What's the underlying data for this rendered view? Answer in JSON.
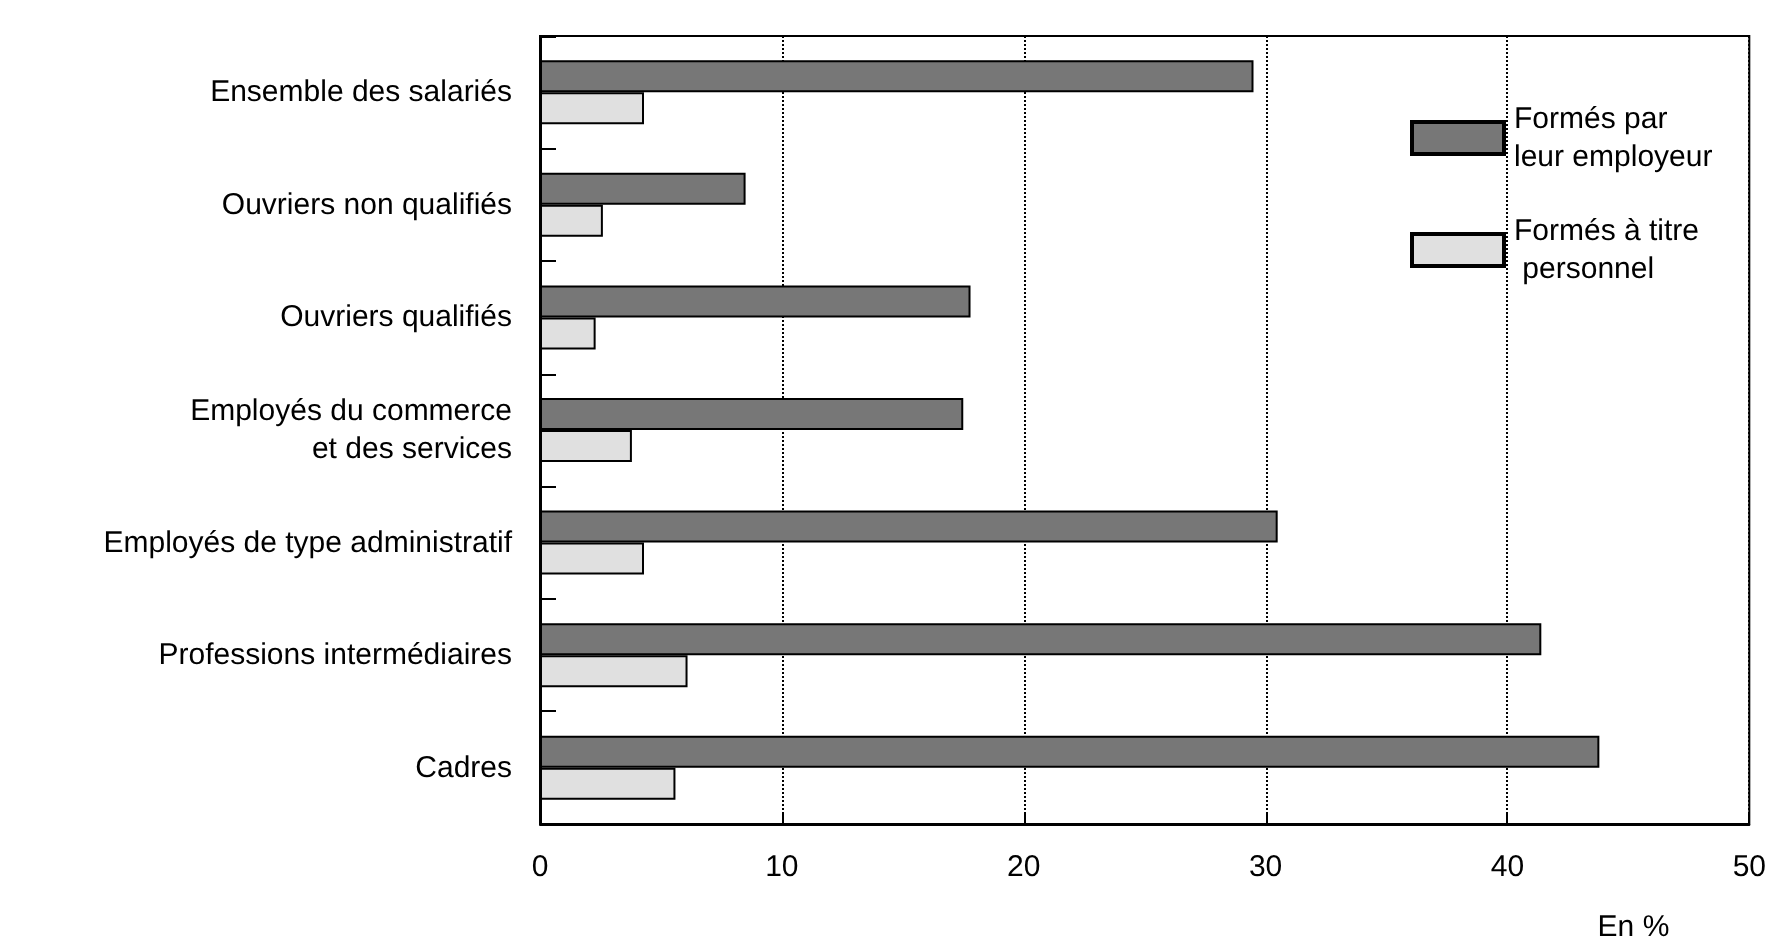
{
  "chart_data": {
    "type": "bar",
    "orientation": "horizontal",
    "xlabel": "En %",
    "categories": [
      "Ensemble des salariés",
      "Ouvriers non qualifiés",
      "Ouvriers qualifiés",
      "Employés du commerce\net des services",
      "Employés de type administratif",
      "Professions intermédiaires",
      "Cadres"
    ],
    "series": [
      {
        "name": "Formés par leur employeur",
        "color": "#777777",
        "values": [
          29.5,
          8.5,
          17.8,
          17.5,
          30.5,
          41.4,
          43.8
        ]
      },
      {
        "name": "Formés à titre personnel",
        "color": "#e0e0e0",
        "values": [
          4.3,
          2.6,
          2.3,
          3.8,
          4.3,
          6.1,
          5.6
        ]
      }
    ],
    "xlim": [
      0,
      50
    ],
    "xticks": [
      0,
      10,
      20,
      30,
      40,
      50
    ],
    "grid": "x",
    "legend": "top right"
  }
}
